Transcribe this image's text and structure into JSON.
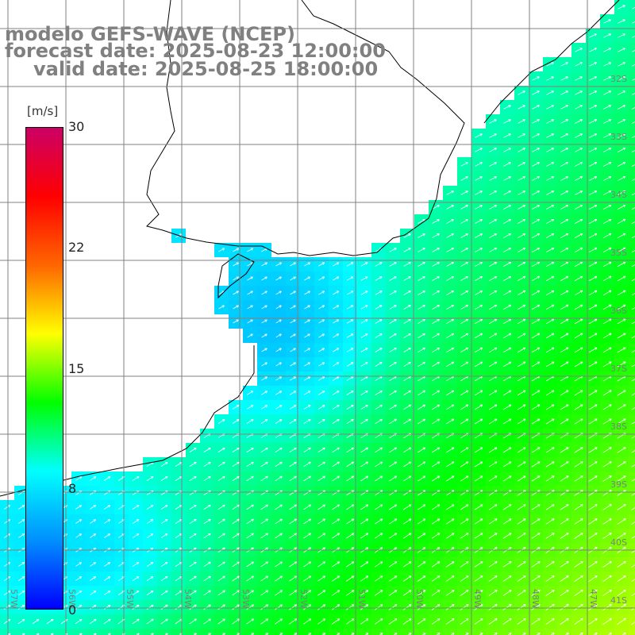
{
  "title": {
    "line1": "modelo GEFS-WAVE (NCEP)",
    "line2": "forecast date: 2025-08-23 12:00:00",
    "line3": "valid date: 2025-08-25 18:00:00"
  },
  "colorbar": {
    "unit": "[m/s]",
    "ticks": [
      "30",
      "22",
      "15",
      "8",
      "0"
    ],
    "gradient": [
      "#0000ff",
      "#0090ff",
      "#00ffff",
      "#00ff00",
      "#ffff00",
      "#ff6600",
      "#ff0000",
      "#cc0066"
    ]
  },
  "latitude_labels": [
    "32S",
    "33S",
    "34S",
    "35S",
    "36S",
    "37S",
    "38S",
    "39S",
    "40S",
    "41S"
  ],
  "longitude_labels": [
    "57W",
    "56W",
    "55W",
    "54W",
    "53W",
    "52W",
    "51W",
    "50W",
    "49W",
    "48W",
    "47W"
  ],
  "colors": {
    "land": "#ffffff",
    "grid": "#808080",
    "coastline": "#000000",
    "arrows": "#ffffff"
  }
}
